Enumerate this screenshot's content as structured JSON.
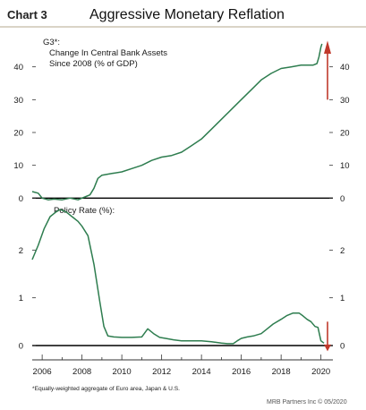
{
  "header": {
    "chart_number": "Chart 3",
    "title": "Aggressive Monetary Reflation"
  },
  "footnote": "*Equally-weighted aggregate of Euro area, Japan & U.S.",
  "source": "MRB Partners Inc © 05/2020",
  "colors": {
    "line": "#2e7d4f",
    "arrow": "#c0392b",
    "axis": "#000000",
    "text": "#1a1a1a",
    "title_rule": "#b5a98f"
  },
  "chart_data": [
    {
      "type": "line",
      "label_lines": [
        "G3*:",
        "Change In Central Bank Assets",
        "Since 2008 (% of GDP)"
      ],
      "ylim": [
        -1,
        50
      ],
      "xlim": [
        2005.5,
        2020.6
      ],
      "yticks": [
        0,
        10,
        20,
        30,
        40
      ],
      "ytick_labels": [
        "0",
        "10",
        "20",
        "30",
        "40"
      ],
      "zero_line": true,
      "arrow": "up",
      "series": [
        {
          "x": [
            2005.5,
            2005.8,
            2006.0,
            2006.3,
            2006.6,
            2007.0,
            2007.4,
            2007.8,
            2008.0,
            2008.2,
            2008.4,
            2008.6,
            2008.8,
            2009.0,
            2009.5,
            2010.0,
            2010.5,
            2011.0,
            2011.5,
            2012.0,
            2012.5,
            2013.0,
            2013.5,
            2014.0,
            2014.5,
            2015.0,
            2015.5,
            2016.0,
            2016.5,
            2017.0,
            2017.5,
            2018.0,
            2018.5,
            2019.0,
            2019.3,
            2019.6,
            2019.8,
            2019.9,
            2020.0,
            2020.05
          ],
          "values": [
            2,
            1.5,
            0,
            -0.5,
            -0.3,
            -0.5,
            0,
            -0.5,
            0,
            0.5,
            1,
            3,
            6,
            7,
            7.5,
            8,
            9,
            10,
            11.5,
            12.5,
            13,
            14,
            16,
            18,
            21,
            24,
            27,
            30,
            33,
            36,
            38,
            39.5,
            40,
            40.5,
            40.5,
            40.5,
            41,
            43,
            46,
            47
          ]
        }
      ]
    },
    {
      "type": "line",
      "label_lines": [
        "Policy Rate (%):"
      ],
      "ylim": [
        -0.3,
        3.0
      ],
      "xlim": [
        2005.5,
        2020.6
      ],
      "yticks": [
        0,
        1,
        2
      ],
      "ytick_labels": [
        "0",
        "1",
        "2"
      ],
      "xticks": [
        2006,
        2008,
        2010,
        2012,
        2014,
        2016,
        2018,
        2020
      ],
      "xtick_labels": [
        "2006",
        "2008",
        "2010",
        "2012",
        "2014",
        "2016",
        "2018",
        "2020"
      ],
      "zero_line": true,
      "arrow": "down",
      "series": [
        {
          "x": [
            2005.5,
            2005.8,
            2006.1,
            2006.4,
            2006.7,
            2006.9,
            2007.2,
            2007.5,
            2007.8,
            2008.0,
            2008.3,
            2008.6,
            2008.9,
            2009.1,
            2009.3,
            2009.6,
            2010.0,
            2010.5,
            2011.0,
            2011.3,
            2011.6,
            2011.9,
            2012.2,
            2012.6,
            2013.0,
            2013.5,
            2014.0,
            2014.5,
            2015.0,
            2015.3,
            2015.6,
            2015.8,
            2016.0,
            2016.3,
            2016.6,
            2017.0,
            2017.3,
            2017.6,
            2018.0,
            2018.3,
            2018.6,
            2018.9,
            2019.1,
            2019.3,
            2019.5,
            2019.7,
            2019.85,
            2020.0,
            2020.15
          ],
          "values": [
            1.8,
            2.1,
            2.45,
            2.7,
            2.8,
            2.85,
            2.8,
            2.7,
            2.6,
            2.5,
            2.3,
            1.7,
            0.9,
            0.4,
            0.2,
            0.18,
            0.17,
            0.17,
            0.18,
            0.35,
            0.25,
            0.17,
            0.15,
            0.12,
            0.1,
            0.1,
            0.1,
            0.08,
            0.05,
            0.04,
            0.04,
            0.1,
            0.15,
            0.18,
            0.2,
            0.25,
            0.35,
            0.45,
            0.55,
            0.63,
            0.68,
            0.68,
            0.62,
            0.55,
            0.5,
            0.4,
            0.38,
            0.1,
            0.05
          ]
        }
      ]
    }
  ]
}
